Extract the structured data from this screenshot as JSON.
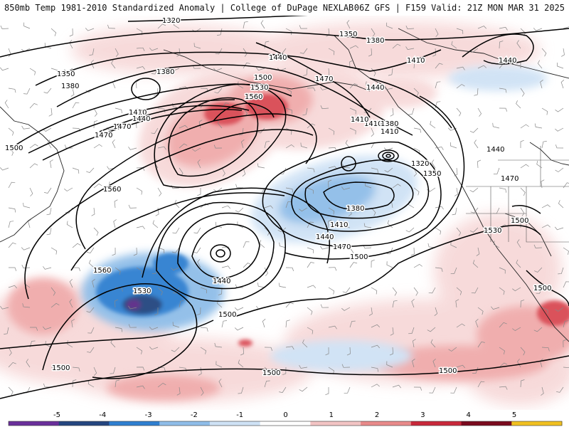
{
  "header": {
    "title": "850mb Temp 1981-2010 Standardized Anomaly | College of DuPage NEXLAB",
    "run_info": "06Z GFS | F159 Valid: 21Z MON MAR 31 2025"
  },
  "map": {
    "contour_labels": [
      "1320",
      "1350",
      "1380",
      "1350",
      "1380",
      "1410",
      "1440",
      "1410",
      "1440",
      "1470",
      "1500",
      "1530",
      "1560",
      "1470",
      "1440",
      "1380",
      "1410",
      "1440",
      "1470",
      "1500",
      "1410",
      "1380",
      "1320",
      "1350",
      "1410",
      "1380",
      "1410",
      "1440",
      "1470",
      "1500",
      "1560",
      "1560",
      "1440",
      "1530",
      "1500",
      "1500",
      "1500",
      "1500",
      "1440",
      "1470",
      "1500",
      "1530",
      "1500"
    ],
    "anomaly_colors": {
      "neg5": "#5b2a86",
      "neg4": "#24457f",
      "neg3": "#2f7fd0",
      "neg2": "#8fbde8",
      "neg1": "#cfe2f5",
      "pos1": "#f7d9d9",
      "pos2": "#f0aaaa",
      "pos3": "#d94a52",
      "pos4": "#a9102a",
      "pos5": "#f0c020"
    }
  },
  "legend": {
    "ticks": [
      "-5",
      "-4",
      "-3",
      "-2",
      "-1",
      "0",
      "1",
      "2",
      "3",
      "4",
      "5"
    ],
    "segment_colors": [
      "#6a2f9a",
      "#24457f",
      "#2f7fd0",
      "#8fbde8",
      "#cfe2f5",
      "#ffffff",
      "#f2c4c4",
      "#e88a8a",
      "#c8283a",
      "#7a0a1e",
      "#f0c020"
    ]
  }
}
